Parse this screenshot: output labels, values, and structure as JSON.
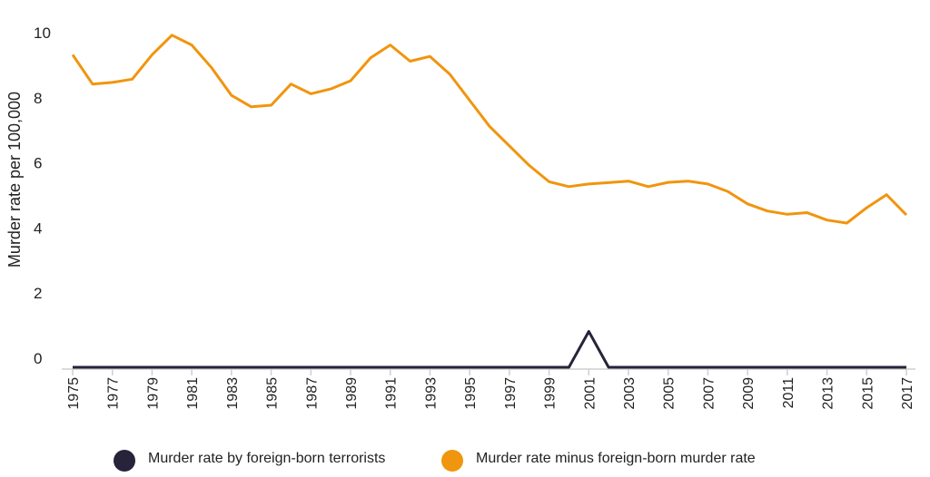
{
  "chart_data": {
    "type": "line",
    "ylabel": "Murder rate per 100,000",
    "xlabel": "",
    "ylim": [
      0,
      10
    ],
    "yticks": [
      0,
      2,
      4,
      6,
      8,
      10
    ],
    "xlim": [
      1975,
      2017
    ],
    "x_tick_labels": [
      "1975",
      "1977",
      "1979",
      "1981",
      "1983",
      "1985",
      "1987",
      "1989",
      "1991",
      "1993",
      "1995",
      "1997",
      "1999",
      "2001",
      "2003",
      "2005",
      "2007",
      "2009",
      "2011",
      "2013",
      "2015",
      "2017"
    ],
    "x": [
      1975,
      1976,
      1977,
      1978,
      1979,
      1980,
      1981,
      1982,
      1983,
      1984,
      1985,
      1986,
      1987,
      1988,
      1989,
      1990,
      1991,
      1992,
      1993,
      1994,
      1995,
      1996,
      1997,
      1998,
      1999,
      2000,
      2001,
      2002,
      2003,
      2004,
      2005,
      2006,
      2007,
      2008,
      2009,
      2010,
      2011,
      2012,
      2013,
      2014,
      2015,
      2016,
      2017
    ],
    "series": [
      {
        "name": "Murder rate by foreign-born terrorists",
        "color": "#26233a",
        "values": [
          0,
          0,
          0,
          0,
          0,
          0,
          0,
          0,
          0,
          0,
          0,
          0,
          0,
          0,
          0,
          0,
          0,
          0,
          0,
          0,
          0,
          0,
          0,
          0,
          0,
          0,
          1.1,
          0,
          0,
          0,
          0,
          0,
          0,
          0,
          0,
          0,
          0,
          0,
          0,
          0,
          0,
          0,
          0
        ]
      },
      {
        "name": "Murder rate minus foreign-born murder rate",
        "color": "#f0950e",
        "values": [
          9.6,
          8.7,
          8.75,
          8.85,
          9.6,
          10.2,
          9.9,
          9.2,
          8.35,
          8.0,
          8.05,
          8.7,
          8.4,
          8.55,
          8.8,
          9.5,
          9.9,
          9.4,
          9.55,
          9.0,
          8.2,
          7.4,
          6.8,
          6.2,
          5.7,
          5.55,
          5.63,
          5.67,
          5.72,
          5.55,
          5.68,
          5.72,
          5.63,
          5.4,
          5.02,
          4.8,
          4.7,
          4.75,
          4.52,
          4.43,
          4.9,
          5.3,
          4.68
        ]
      }
    ],
    "legend_position": "bottom",
    "grid": false
  }
}
